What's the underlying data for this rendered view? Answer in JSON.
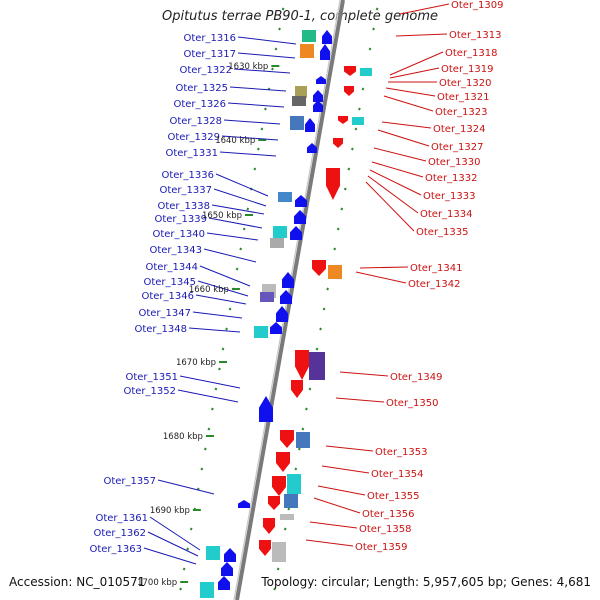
{
  "title": "Opitutus terrae PB90-1, complete genome",
  "accession": "Accession: NC_010571",
  "summary": "Topology: circular; Length: 5,957,605 bp; Genes: 4,681",
  "colors": {
    "forward_label": "#1a1ab4",
    "reverse_label": "#cc1111",
    "forward_gene": "#1010ee",
    "reverse_gene": "#ee1111",
    "backbone": "#7a7a7a",
    "tick": "#2a8a2a"
  },
  "bp_ticks": [
    "1630 kbp",
    "1640 kbp",
    "1650 kbp",
    "1660 kbp",
    "1670 kbp",
    "1680 kbp",
    "1690 kbp",
    "1700 kbp"
  ],
  "left_labels": [
    "Oter_1316",
    "Oter_1317",
    "Oter_1322",
    "Oter_1325",
    "Oter_1326",
    "Oter_1328",
    "Oter_1329",
    "Oter_1331",
    "Oter_1336",
    "Oter_1337",
    "Oter_1338",
    "Oter_1339",
    "Oter_1340",
    "Oter_1343",
    "Oter_1344",
    "Oter_1345",
    "Oter_1346",
    "Oter_1347",
    "Oter_1348",
    "Oter_1351",
    "Oter_1352",
    "Oter_1357",
    "Oter_1361",
    "Oter_1362",
    "Oter_1363"
  ],
  "right_labels": [
    "Oter_1309",
    "Oter_1313",
    "Oter_1318",
    "Oter_1319",
    "Oter_1320",
    "Oter_1321",
    "Oter_1323",
    "Oter_1324",
    "Oter_1327",
    "Oter_1330",
    "Oter_1332",
    "Oter_1333",
    "Oter_1334",
    "Oter_1335",
    "Oter_1341",
    "Oter_1342",
    "Oter_1349",
    "Oter_1350",
    "Oter_1353",
    "Oter_1354",
    "Oter_1355",
    "Oter_1356",
    "Oter_1358",
    "Oter_1359"
  ]
}
